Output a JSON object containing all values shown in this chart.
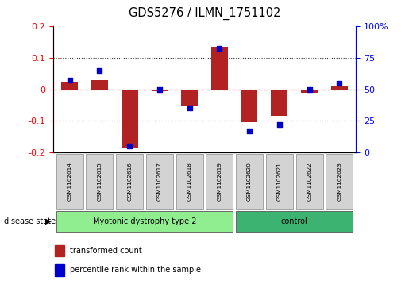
{
  "title": "GDS5276 / ILMN_1751102",
  "samples": [
    "GSM1102614",
    "GSM1102615",
    "GSM1102616",
    "GSM1102617",
    "GSM1102618",
    "GSM1102619",
    "GSM1102620",
    "GSM1102621",
    "GSM1102622",
    "GSM1102623"
  ],
  "transformed_count": [
    0.025,
    0.03,
    -0.185,
    -0.005,
    -0.055,
    0.135,
    -0.105,
    -0.085,
    -0.01,
    0.01
  ],
  "percentile_rank": [
    57,
    65,
    5,
    50,
    35,
    82,
    17,
    22,
    50,
    55
  ],
  "ylim_left": [
    -0.2,
    0.2
  ],
  "ylim_right": [
    0,
    100
  ],
  "yticks_left": [
    -0.2,
    -0.1,
    0.0,
    0.1,
    0.2
  ],
  "yticks_left_labels": [
    "-0.2",
    "-0.1",
    "0",
    "0.1",
    "0.2"
  ],
  "yticks_right": [
    0,
    25,
    50,
    75,
    100
  ],
  "yticks_right_labels": [
    "0",
    "25",
    "50",
    "75",
    "100%"
  ],
  "groups": [
    {
      "label": "Myotonic dystrophy type 2",
      "start": 0,
      "end": 5,
      "color": "#90ee90"
    },
    {
      "label": "control",
      "start": 6,
      "end": 9,
      "color": "#3cb371"
    }
  ],
  "disease_state_label": "disease state",
  "bar_color": "#b22222",
  "dot_color": "#0000cd",
  "zero_line_color": "#ff6666",
  "dot_line_color": "#cc0000",
  "grid_color": "#333333",
  "legend_bar_label": "transformed count",
  "legend_dot_label": "percentile rank within the sample",
  "bar_width": 0.55,
  "background_color": "#ffffff"
}
